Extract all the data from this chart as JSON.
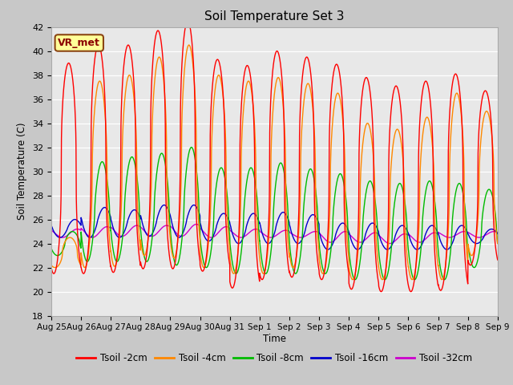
{
  "title": "Soil Temperature Set 3",
  "ylabel": "Soil Temperature (C)",
  "xlabel": "Time",
  "ylim": [
    18,
    42
  ],
  "yticks": [
    18,
    20,
    22,
    24,
    26,
    28,
    30,
    32,
    34,
    36,
    38,
    40,
    42
  ],
  "xtick_labels": [
    "Aug 25",
    "Aug 26",
    "Aug 27",
    "Aug 28",
    "Aug 29",
    "Aug 30",
    "Aug 31",
    "Sep 1",
    "Sep 2",
    "Sep 3",
    "Sep 4",
    "Sep 5",
    "Sep 6",
    "Sep 7",
    "Sep 8",
    "Sep 9"
  ],
  "fig_bg_color": "#c8c8c8",
  "plot_bg_color": "#e8e8e8",
  "line_colors": {
    "2cm": "#ff0000",
    "4cm": "#ff8800",
    "8cm": "#00bb00",
    "16cm": "#0000cc",
    "32cm": "#cc00cc"
  },
  "legend_label": "VR_met",
  "legend_entries": [
    "Tsoil -2cm",
    "Tsoil -4cm",
    "Tsoil -8cm",
    "Tsoil -16cm",
    "Tsoil -32cm"
  ],
  "peaks_2cm": [
    39.0,
    40.5,
    40.5,
    41.7,
    42.5,
    39.3,
    38.8,
    40.0,
    39.5,
    38.9,
    37.8,
    37.1,
    37.5,
    38.1,
    36.7
  ],
  "troughs_2cm": [
    21.5,
    21.5,
    21.6,
    21.9,
    21.9,
    21.7,
    20.3,
    21.0,
    21.2,
    21.0,
    20.2,
    20.0,
    20.0,
    20.1,
    22.2
  ],
  "peaks_4cm": [
    24.5,
    37.5,
    38.0,
    39.5,
    40.5,
    38.0,
    37.5,
    37.8,
    37.3,
    36.5,
    34.0,
    33.5,
    34.5,
    36.5,
    35.0
  ],
  "troughs_4cm": [
    22.0,
    22.0,
    22.1,
    23.0,
    22.8,
    22.0,
    21.5,
    21.5,
    22.0,
    21.5,
    21.0,
    21.0,
    21.0,
    21.0,
    23.0
  ],
  "peaks_8cm": [
    25.0,
    30.8,
    31.2,
    31.5,
    32.0,
    30.3,
    30.3,
    30.7,
    30.2,
    29.8,
    29.2,
    29.0,
    29.2,
    29.0,
    28.5
  ],
  "troughs_8cm": [
    23.0,
    22.5,
    22.5,
    22.5,
    22.2,
    22.0,
    21.5,
    21.5,
    21.5,
    21.5,
    21.0,
    21.0,
    21.0,
    21.0,
    22.0
  ],
  "peaks_16cm": [
    26.0,
    27.0,
    26.8,
    27.2,
    27.2,
    26.5,
    26.5,
    26.6,
    26.4,
    25.7,
    25.7,
    25.5,
    25.5,
    25.5,
    25.2
  ],
  "troughs_16cm": [
    24.5,
    24.5,
    24.5,
    24.6,
    24.5,
    24.2,
    24.0,
    24.0,
    24.0,
    23.5,
    23.5,
    23.5,
    23.5,
    23.5,
    24.0
  ],
  "peaks_32cm": [
    25.2,
    25.4,
    25.5,
    25.5,
    25.6,
    25.4,
    25.2,
    25.1,
    25.0,
    25.0,
    24.9,
    24.8,
    24.9,
    25.0,
    25.0
  ],
  "troughs_32cm": [
    24.5,
    24.5,
    24.6,
    24.6,
    24.6,
    24.5,
    24.5,
    24.5,
    24.5,
    24.1,
    24.1,
    24.0,
    24.1,
    24.5,
    24.5
  ]
}
